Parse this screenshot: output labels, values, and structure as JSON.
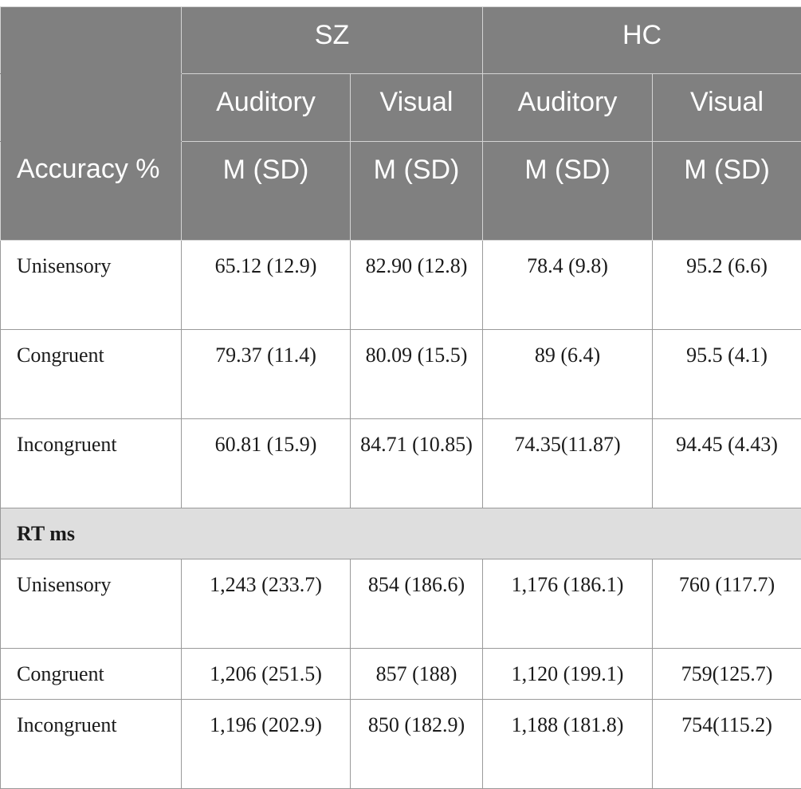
{
  "header": {
    "group_sz": "SZ",
    "group_hc": "HC",
    "sz_auditory": "Auditory",
    "sz_visual": "Visual",
    "hc_auditory": "Auditory",
    "hc_visual": "Visual",
    "accuracy_label": "Accuracy %",
    "stat_1": "M (SD)",
    "stat_2": "M (SD)",
    "stat_3": "M (SD)",
    "stat_4": "M (SD)"
  },
  "accuracy_rows": [
    {
      "label": "Unisensory",
      "sz_auditory": "65.12 (12.9)",
      "sz_visual": "82.90 (12.8)",
      "hc_auditory": "78.4 (9.8)",
      "hc_visual": "95.2 (6.6)"
    },
    {
      "label": "Congruent",
      "sz_auditory": "79.37 (11.4)",
      "sz_visual": "80.09 (15.5)",
      "hc_auditory": "89 (6.4)",
      "hc_visual": "95.5 (4.1)"
    },
    {
      "label": "Incongruent",
      "sz_auditory": "60.81 (15.9)",
      "sz_visual": "84.71 (10.85)",
      "hc_auditory": "74.35(11.87)",
      "hc_visual": "94.45 (4.43)"
    }
  ],
  "rt_section_label": "RT ms",
  "rt_rows": [
    {
      "label": "Unisensory",
      "sz_auditory": "1,243 (233.7)",
      "sz_visual": "854 (186.6)",
      "hc_auditory": "1,176 (186.1)",
      "hc_visual": "760 (117.7)"
    },
    {
      "label": "Congruent",
      "sz_auditory": "1,206 (251.5)",
      "sz_visual": "857 (188)",
      "hc_auditory": "1,120 (199.1)",
      "hc_visual": "759(125.7)"
    },
    {
      "label": "Incongruent",
      "sz_auditory": "1,196 (202.9)",
      "sz_visual": "850 (182.9)",
      "hc_auditory": "1,188 (181.8)",
      "hc_visual": "754(115.2)"
    }
  ]
}
